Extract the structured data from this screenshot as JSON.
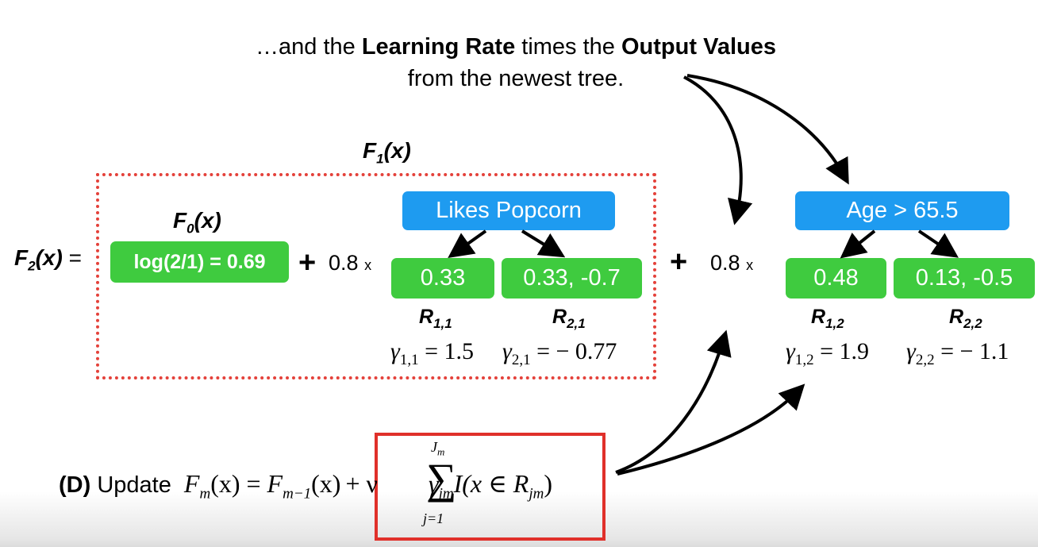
{
  "caption": {
    "line1_pre": "…and the ",
    "line1_b1": "Learning Rate",
    "line1_mid": " times the ",
    "line1_b2": "Output Values",
    "line2": "from the newest tree."
  },
  "f1_label": {
    "main": "F",
    "sub": "1",
    "tail": "(x)"
  },
  "f0_label": {
    "main": "F",
    "sub": "0",
    "tail": "(x)"
  },
  "f2_label": {
    "main": "F",
    "sub": "2",
    "tail": "(x)",
    "eq": "="
  },
  "f0_value": "log(2/1) = 0.69",
  "operator_plus": "+",
  "learning_rate": "0.8",
  "times_sign": "x",
  "tree1": {
    "root": "Likes Popcorn",
    "leaf_left": "0.33",
    "leaf_right": "0.33, -0.7",
    "r_left": {
      "main": "R",
      "sub": "1,1"
    },
    "r_right": {
      "main": "R",
      "sub": "2,1"
    },
    "gamma_left": {
      "sym": "γ",
      "sub": "1,1",
      "rest": " = 1.5"
    },
    "gamma_right": {
      "sym": "γ",
      "sub": "2,1",
      "rest": " = − 0.77"
    }
  },
  "tree2": {
    "root": "Age > 65.5",
    "leaf_left": "0.48",
    "leaf_right": "0.13, -0.5",
    "r_left": {
      "main": "R",
      "sub": "1,2"
    },
    "r_right": {
      "main": "R",
      "sub": "2,2"
    },
    "gamma_left": {
      "sym": "γ",
      "sub": "1,2",
      "rest": " = 1.9"
    },
    "gamma_right": {
      "sym": "γ",
      "sub": "2,2",
      "rest": " = − 1.1"
    }
  },
  "update": {
    "step": "(D)",
    "word": "Update",
    "lhs": "F",
    "lhs_sub": "m",
    "lhs_tail": "(x) = ",
    "prev": "F",
    "prev_sub": "m−1",
    "prev_tail": "(x)",
    "plus_nu": "+ ν",
    "sum_symbol": "∑",
    "sum_top": "J",
    "sum_top_sub": "m",
    "sum_bottom": "j=1",
    "gamma": "γ",
    "gamma_sub": "jm",
    "indicator": "I(x ∈ R",
    "indicator_sub": "jm",
    "indicator_tail": ")"
  },
  "colors": {
    "leaf_green": "#3fcb3f",
    "root_blue": "#1e9bf0",
    "dotted_red": "#e4413a",
    "box_red": "#e0302a"
  }
}
